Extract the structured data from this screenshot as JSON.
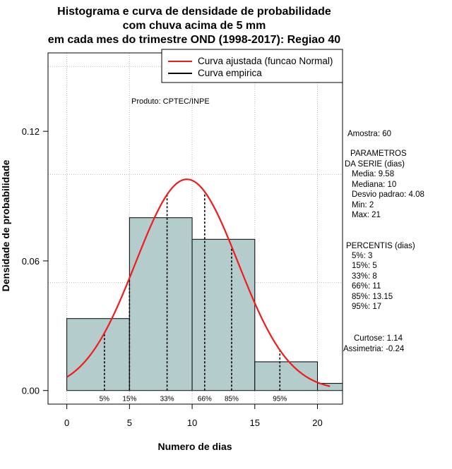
{
  "chart_data": {
    "type": "bar",
    "title_lines": [
      "Histograma e curva de densidade de probabilidade",
      "com chuva acima de 5 mm",
      "em cada mes do trimestre OND (1998-2017): Regiao 40"
    ],
    "xlabel": "Numero de dias",
    "ylabel": "Densidade de probabilidade",
    "xlim": [
      -1.5,
      22
    ],
    "ylim": [
      -0.0063,
      0.1563
    ],
    "x_ticks": [
      0,
      5,
      10,
      15,
      20
    ],
    "y_ticks": [
      0.0,
      0.06,
      0.12
    ],
    "y_tick_labels": [
      "0.00",
      "0.06",
      "0.12"
    ],
    "x_grid": [
      0,
      5,
      10,
      15,
      20
    ],
    "y_grid": [
      0.05,
      0.1,
      0.15
    ],
    "bins": [
      {
        "x0": 0,
        "x1": 5,
        "density": 0.0333
      },
      {
        "x0": 5,
        "x1": 10,
        "density": 0.08
      },
      {
        "x0": 10,
        "x1": 15,
        "density": 0.07
      },
      {
        "x0": 15,
        "x1": 20,
        "density": 0.0133
      },
      {
        "x0": 20,
        "x1": 22,
        "density": 0.0033
      }
    ],
    "bar_color": "#b5cccc",
    "curve_color": "#ee1c1c",
    "curve_mean": 9.58,
    "curve_sd": 4.08,
    "curve_x_range": [
      0,
      21
    ],
    "percentile_lines": [
      {
        "label": "5%",
        "x": 3
      },
      {
        "label": "15%",
        "x": 5
      },
      {
        "label": "33%",
        "x": 8
      },
      {
        "label": "66%",
        "x": 11
      },
      {
        "label": "85%",
        "x": 13.15
      },
      {
        "label": "95%",
        "x": 17
      }
    ],
    "legend": [
      {
        "label": "Curva ajustada (funcao Normal)",
        "color": "#ee1c1c"
      },
      {
        "label": "Curva empirica",
        "color": "#000000"
      }
    ],
    "annotation": "Produto: CPTEC/INPE"
  },
  "stats_panel": {
    "sample": "Amostra: 60",
    "params_title_1": "PARAMETROS",
    "params_title_2": "DA SERIE (dias)",
    "media": "Media: 9.58",
    "mediana": "Mediana: 10",
    "desvio": "Desvio padrao: 4.08",
    "min": "Min: 2",
    "max": "Max: 21",
    "percentis_title": "PERCENTIS (dias)",
    "p5": "5%: 3",
    "p15": "15%: 5",
    "p33": "33%: 8",
    "p66": "66%: 11",
    "p85": "85%: 13.15",
    "p95": "95%: 17",
    "curtose": "Curtose: 1.14",
    "assimetria": "Assimetria: -0.24"
  }
}
